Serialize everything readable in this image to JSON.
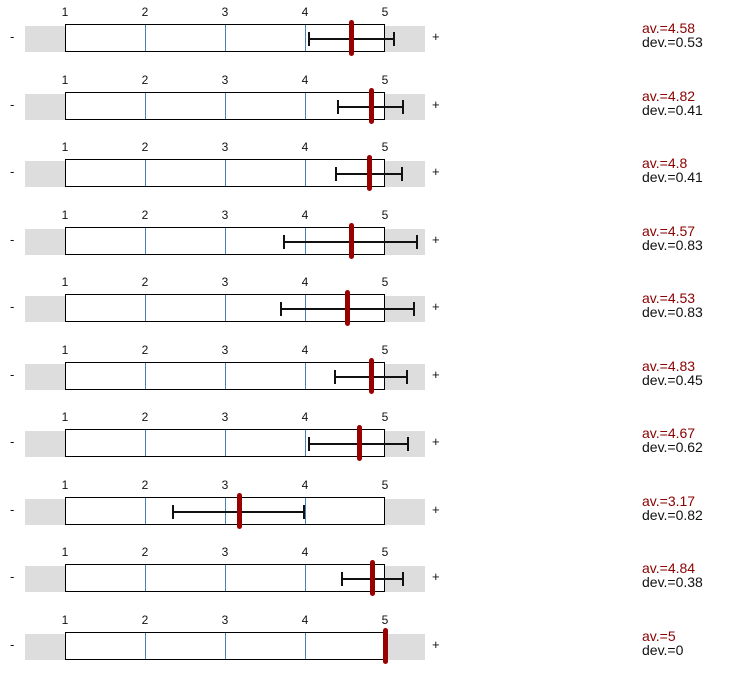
{
  "chart_data": {
    "type": "scale-ratings",
    "scale": {
      "min": 1,
      "max": 5,
      "ticks": [
        "1",
        "2",
        "3",
        "4",
        "5"
      ]
    },
    "pole_left": "-",
    "pole_right": "+",
    "avg_prefix": "av.=",
    "dev_prefix": "dev.=",
    "items": [
      {
        "mean": 4.58,
        "dev": 0.53,
        "av_label": "4.58",
        "dev_label": "0.53",
        "err_low": 4.05,
        "err_high": 5.11
      },
      {
        "mean": 4.82,
        "dev": 0.41,
        "av_label": "4.82",
        "dev_label": "0.41",
        "err_low": 4.41,
        "err_high": 5.23
      },
      {
        "mean": 4.8,
        "dev": 0.41,
        "av_label": "4.8",
        "dev_label": "0.41",
        "err_low": 4.39,
        "err_high": 5.21
      },
      {
        "mean": 4.57,
        "dev": 0.83,
        "av_label": "4.57",
        "dev_label": "0.83",
        "err_low": 3.74,
        "err_high": 5.4
      },
      {
        "mean": 4.53,
        "dev": 0.83,
        "av_label": "4.53",
        "dev_label": "0.83",
        "err_low": 3.7,
        "err_high": 5.36
      },
      {
        "mean": 4.83,
        "dev": 0.45,
        "av_label": "4.83",
        "dev_label": "0.45",
        "err_low": 4.38,
        "err_high": 5.28
      },
      {
        "mean": 4.67,
        "dev": 0.62,
        "av_label": "4.67",
        "dev_label": "0.62",
        "err_low": 4.05,
        "err_high": 5.29
      },
      {
        "mean": 3.17,
        "dev": 0.82,
        "av_label": "3.17",
        "dev_label": "0.82",
        "err_low": 2.35,
        "err_high": 3.99
      },
      {
        "mean": 4.84,
        "dev": 0.38,
        "av_label": "4.84",
        "dev_label": "0.38",
        "err_low": 4.46,
        "err_high": 5.22
      },
      {
        "mean": 5,
        "dev": 0,
        "av_label": "5",
        "dev_label": "0",
        "err_low": 5,
        "err_high": 5
      }
    ]
  },
  "colors": {
    "mean_marker": "#990000",
    "band": "#dddddd",
    "gridline": "#4a7fb5",
    "av_text": "#8b0000"
  }
}
